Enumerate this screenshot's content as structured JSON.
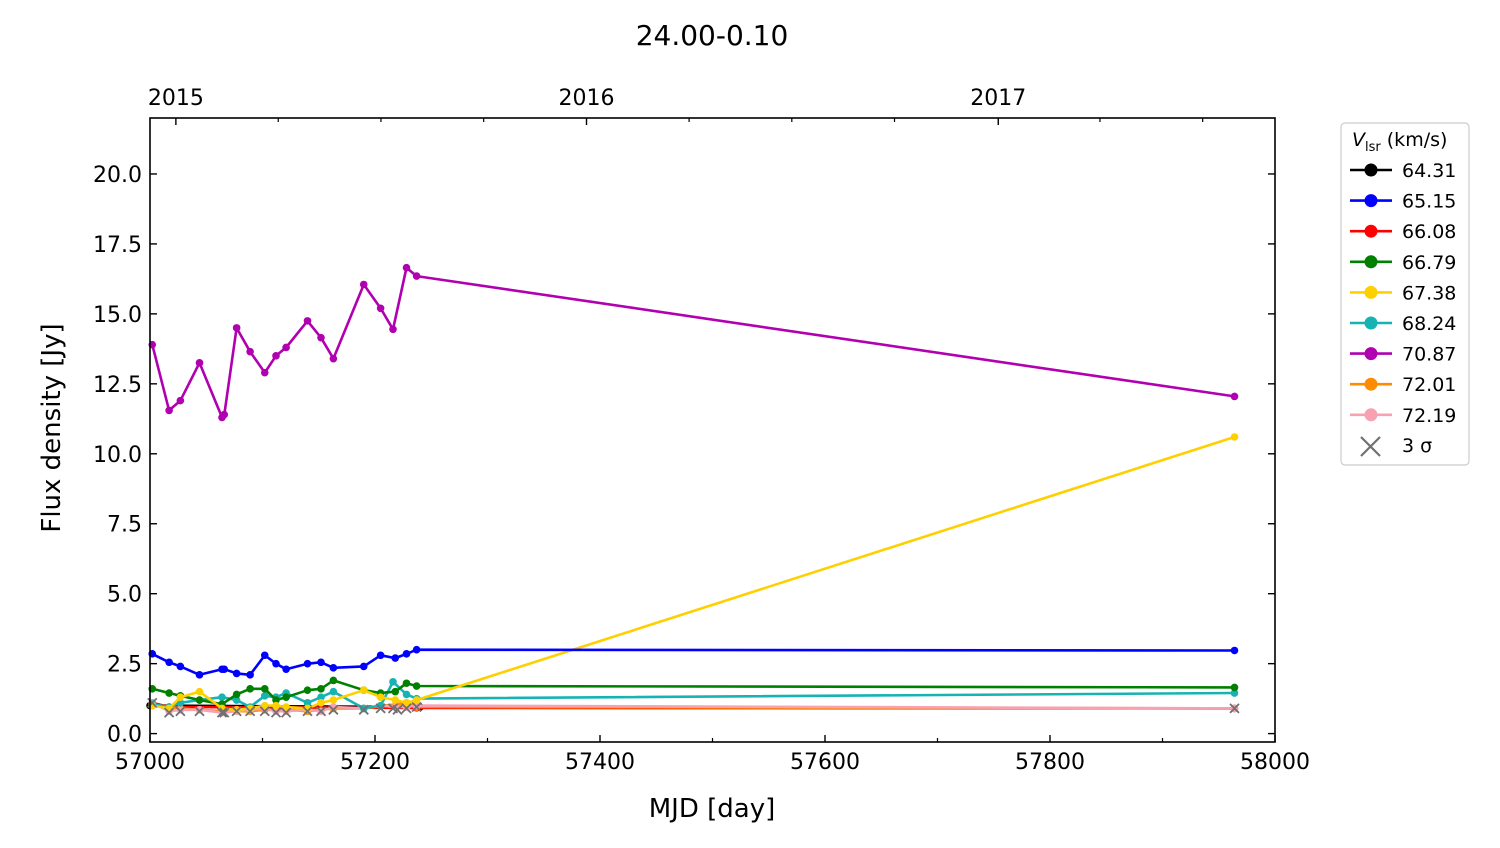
{
  "chart_data": {
    "type": "line",
    "title": "24.00-0.10",
    "xlabel": "MJD [day]",
    "ylabel": "Flux density [Jy]",
    "xlim": [
      57000,
      58000
    ],
    "ylim": [
      -0.3,
      22
    ],
    "x_ticks": [
      57000,
      57200,
      57400,
      57600,
      57800,
      58000
    ],
    "x_tick_labels": [
      "57000",
      "57200",
      "57400",
      "57600",
      "57800",
      "58000"
    ],
    "y_ticks": [
      0.0,
      2.5,
      5.0,
      7.5,
      10.0,
      12.5,
      15.0,
      17.5,
      20.0
    ],
    "y_tick_labels": [
      "0.0",
      "2.5",
      "5.0",
      "7.5",
      "10.0",
      "12.5",
      "15.0",
      "17.5",
      "20.0"
    ],
    "top_axis": {
      "ticks_mjd": [
        57023,
        57388,
        57754
      ],
      "labels": [
        "2015",
        "2016",
        "2017"
      ]
    },
    "grid": false,
    "legend": {
      "title": "V_lsr (km/s)",
      "title_main": "V",
      "title_sub": "lsr",
      "title_rest": " (km/s)",
      "placement": "outside-right",
      "sigma_label": "3 σ"
    },
    "series": [
      {
        "name": "64.31",
        "color": "#000000",
        "x": [
          57000,
          57240
        ],
        "y": [
          1.0,
          0.95
        ]
      },
      {
        "name": "65.15",
        "color": "#0000ff",
        "x": [
          57002,
          57017,
          57027,
          57044,
          57064,
          57066,
          57077,
          57089,
          57102,
          57112,
          57121,
          57140,
          57152,
          57163,
          57190,
          57205,
          57218,
          57228,
          57237,
          57964
        ],
        "y": [
          2.85,
          2.55,
          2.4,
          2.1,
          2.3,
          2.3,
          2.15,
          2.1,
          2.8,
          2.5,
          2.3,
          2.5,
          2.55,
          2.35,
          2.4,
          2.8,
          2.7,
          2.85,
          3.0,
          2.97
        ]
      },
      {
        "name": "66.08",
        "color": "#ff0000",
        "x": [
          57002,
          57017,
          57237,
          57964
        ],
        "y": [
          1.1,
          0.95,
          0.92,
          0.9
        ]
      },
      {
        "name": "66.79",
        "color": "#008000",
        "x": [
          57002,
          57017,
          57027,
          57044,
          57064,
          57077,
          57089,
          57102,
          57112,
          57121,
          57140,
          57152,
          57163,
          57190,
          57205,
          57218,
          57228,
          57237,
          57964
        ],
        "y": [
          1.6,
          1.45,
          1.35,
          1.2,
          1.05,
          1.4,
          1.6,
          1.6,
          1.2,
          1.3,
          1.55,
          1.6,
          1.9,
          1.55,
          1.45,
          1.5,
          1.8,
          1.7,
          1.65
        ]
      },
      {
        "name": "67.38",
        "color": "#ffd000",
        "x": [
          57002,
          57017,
          57027,
          57044,
          57064,
          57077,
          57089,
          57102,
          57112,
          57121,
          57140,
          57152,
          57163,
          57190,
          57205,
          57218,
          57228,
          57237,
          57964
        ],
        "y": [
          1.0,
          0.9,
          1.3,
          1.5,
          0.9,
          0.85,
          0.9,
          1.0,
          1.0,
          0.95,
          0.9,
          1.1,
          1.2,
          1.55,
          1.3,
          1.2,
          1.1,
          1.2,
          10.6
        ]
      },
      {
        "name": "68.24",
        "color": "#17b3b3",
        "x": [
          57002,
          57017,
          57027,
          57044,
          57064,
          57077,
          57089,
          57102,
          57112,
          57121,
          57140,
          57152,
          57163,
          57190,
          57205,
          57216,
          57228,
          57237,
          57964
        ],
        "y": [
          1.05,
          0.95,
          1.1,
          1.2,
          1.3,
          1.2,
          0.95,
          1.35,
          1.3,
          1.45,
          1.1,
          1.3,
          1.5,
          0.9,
          1.0,
          1.85,
          1.4,
          1.25,
          1.45
        ]
      },
      {
        "name": "70.87",
        "color": "#b000b0",
        "x": [
          57002,
          57017,
          57027,
          57044,
          57064,
          57066,
          57077,
          57089,
          57102,
          57112,
          57121,
          57140,
          57152,
          57163,
          57190,
          57205,
          57216,
          57228,
          57237,
          57964
        ],
        "y": [
          13.9,
          11.55,
          11.9,
          13.25,
          11.3,
          11.4,
          14.5,
          13.65,
          12.9,
          13.5,
          13.8,
          14.75,
          14.15,
          13.4,
          16.05,
          15.2,
          14.45,
          16.65,
          16.35,
          12.05
        ]
      },
      {
        "name": "72.01",
        "color": "#ff8c00",
        "x": [
          57002,
          57017,
          57027,
          57044,
          57064,
          57089,
          57102,
          57121,
          57140,
          57163,
          57190,
          57228,
          57237,
          57964
        ],
        "y": [
          1.0,
          0.95,
          0.9,
          0.85,
          0.8,
          0.8,
          0.85,
          0.85,
          0.8,
          0.9,
          0.9,
          1.1,
          0.95,
          0.9
        ]
      },
      {
        "name": "72.19",
        "color": "#f7a1b1",
        "x": [
          57002,
          57017,
          57027,
          57044,
          57064,
          57077,
          57089,
          57102,
          57112,
          57121,
          57140,
          57152,
          57163,
          57190,
          57205,
          57218,
          57228,
          57237,
          57964
        ],
        "y": [
          1.1,
          0.8,
          0.85,
          0.85,
          0.75,
          0.8,
          0.85,
          0.9,
          0.8,
          0.8,
          0.85,
          0.8,
          0.95,
          0.9,
          1.0,
          0.95,
          0.95,
          1.0,
          0.9
        ]
      }
    ],
    "upper_limits": {
      "name": "3 σ",
      "color": "#707070",
      "x": [
        57002,
        57017,
        57027,
        57044,
        57064,
        57066,
        57077,
        57089,
        57102,
        57112,
        57121,
        57140,
        57152,
        57163,
        57190,
        57205,
        57216,
        57220,
        57228,
        57237,
        57964
      ],
      "y": [
        1.1,
        0.75,
        0.8,
        0.8,
        0.75,
        0.75,
        0.8,
        0.8,
        0.8,
        0.75,
        0.75,
        0.8,
        0.8,
        0.85,
        0.85,
        0.9,
        0.9,
        0.85,
        0.9,
        0.95,
        0.9
      ]
    }
  }
}
